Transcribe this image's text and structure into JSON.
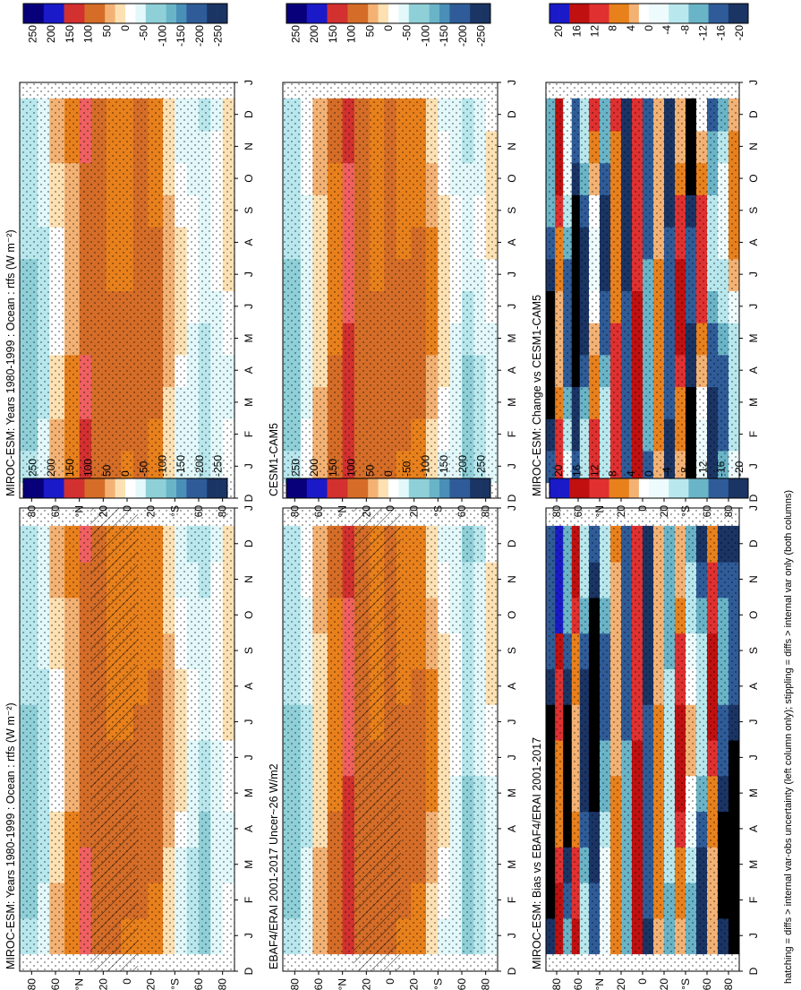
{
  "figure": {
    "footnote": "hatching = diffs > internal var-obs uncertainty (left column only); stippling = diffs > internal var only (both columns)"
  },
  "chart_data": [
    {
      "type": "heatmap",
      "panel": "left-top",
      "title": "MIROC-ESM: Years 1980-1999 : Ocean : rtfs (W m⁻²)",
      "x_ticks": [
        "D",
        "J",
        "F",
        "M",
        "A",
        "M",
        "J",
        "J",
        "A",
        "S",
        "O",
        "N",
        "D",
        "J"
      ],
      "y_ticks": [
        "80",
        "60",
        "°N",
        "20",
        "0",
        "20",
        "°S",
        "60",
        "80"
      ],
      "colorbar_ticks": [
        "250",
        "200",
        "150",
        "100",
        "50",
        "0",
        "-50",
        "-100",
        "-150",
        "-200",
        "-250"
      ],
      "stippling": true,
      "hatching": true,
      "bands": [
        {
          "lat": 80,
          "value": -60
        },
        {
          "lat": 70,
          "value": -40
        },
        {
          "lat": 60,
          "value": 10
        },
        {
          "lat": 45,
          "value": 40
        },
        {
          "lat": 35,
          "value": 80
        },
        {
          "lat": 25,
          "value": 70
        },
        {
          "lat": 10,
          "value": 60
        },
        {
          "lat": 0,
          "value": 60
        },
        {
          "lat": -10,
          "value": 60
        },
        {
          "lat": -25,
          "value": 60
        },
        {
          "lat": -35,
          "value": 20
        },
        {
          "lat": -45,
          "value": -10
        },
        {
          "lat": -55,
          "value": -30
        },
        {
          "lat": -65,
          "value": -50
        },
        {
          "lat": -75,
          "value": -20
        },
        {
          "lat": -85,
          "value": 0
        }
      ]
    },
    {
      "type": "heatmap",
      "panel": "right-top",
      "title": "MIROC-ESM: Years 1980-1999 : Ocean : rtfs (W m⁻²)",
      "x_ticks": [
        "D",
        "J",
        "F",
        "M",
        "A",
        "M",
        "J",
        "J",
        "A",
        "S",
        "O",
        "N",
        "D",
        "J"
      ],
      "y_ticks": [
        "80",
        "60",
        "°N",
        "20",
        "0",
        "20",
        "°S",
        "60",
        "80"
      ],
      "colorbar_ticks": [
        "250",
        "200",
        "150",
        "100",
        "50",
        "0",
        "-50",
        "-100",
        "-150",
        "-200",
        "-250"
      ],
      "stippling": true,
      "hatching": false,
      "bands": [
        {
          "lat": 80,
          "value": -60
        },
        {
          "lat": 70,
          "value": -40
        },
        {
          "lat": 60,
          "value": 10
        },
        {
          "lat": 45,
          "value": 40
        },
        {
          "lat": 35,
          "value": 90
        },
        {
          "lat": 25,
          "value": 70
        },
        {
          "lat": 10,
          "value": 60
        },
        {
          "lat": 0,
          "value": 60
        },
        {
          "lat": -10,
          "value": 70
        },
        {
          "lat": -25,
          "value": 60
        },
        {
          "lat": -35,
          "value": 20
        },
        {
          "lat": -45,
          "value": -10
        },
        {
          "lat": -55,
          "value": -20
        },
        {
          "lat": -65,
          "value": -40
        },
        {
          "lat": -75,
          "value": -20
        },
        {
          "lat": -85,
          "value": 0
        }
      ]
    },
    {
      "type": "heatmap",
      "panel": "left-middle",
      "title": "EBAF4/ERAI 2001-2017 Uncer~26 W/m2",
      "x_ticks": [
        "D",
        "J",
        "F",
        "M",
        "A",
        "M",
        "J",
        "J",
        "A",
        "S",
        "O",
        "N",
        "D",
        "J"
      ],
      "y_ticks": [
        "80",
        "60",
        "°N",
        "20",
        "0",
        "20",
        "°S",
        "60",
        "80"
      ],
      "colorbar_ticks": [
        "250",
        "200",
        "150",
        "100",
        "50",
        "0",
        "-50",
        "-100",
        "-150",
        "-200",
        "-250"
      ],
      "stippling": true,
      "hatching": true,
      "bands": [
        {
          "lat": 80,
          "value": -60
        },
        {
          "lat": 70,
          "value": -30
        },
        {
          "lat": 60,
          "value": 20
        },
        {
          "lat": 45,
          "value": 60
        },
        {
          "lat": 35,
          "value": 110
        },
        {
          "lat": 25,
          "value": 80
        },
        {
          "lat": 10,
          "value": 60
        },
        {
          "lat": 0,
          "value": 70
        },
        {
          "lat": -10,
          "value": 60
        },
        {
          "lat": -25,
          "value": 60
        },
        {
          "lat": -35,
          "value": 30
        },
        {
          "lat": -45,
          "value": 0
        },
        {
          "lat": -55,
          "value": -20
        },
        {
          "lat": -65,
          "value": -60
        },
        {
          "lat": -75,
          "value": -40
        },
        {
          "lat": -85,
          "value": -10
        }
      ]
    },
    {
      "type": "heatmap",
      "panel": "right-middle",
      "title": "CESM1-CAM5",
      "x_ticks": [
        "D",
        "J",
        "F",
        "M",
        "A",
        "M",
        "J",
        "J",
        "A",
        "S",
        "O",
        "N",
        "D",
        "J"
      ],
      "y_ticks": [
        "80",
        "60",
        "°N",
        "20",
        "0",
        "20",
        "°S",
        "60",
        "80"
      ],
      "colorbar_ticks": [
        "250",
        "200",
        "150",
        "100",
        "50",
        "0",
        "-50",
        "-100",
        "-150",
        "-200",
        "-250"
      ],
      "stippling": true,
      "hatching": false,
      "bands": [
        {
          "lat": 80,
          "value": -60
        },
        {
          "lat": 70,
          "value": -20
        },
        {
          "lat": 60,
          "value": 20
        },
        {
          "lat": 45,
          "value": 60
        },
        {
          "lat": 35,
          "value": 110
        },
        {
          "lat": 25,
          "value": 80
        },
        {
          "lat": 10,
          "value": 60
        },
        {
          "lat": 0,
          "value": 70
        },
        {
          "lat": -10,
          "value": 60
        },
        {
          "lat": -25,
          "value": 60
        },
        {
          "lat": -35,
          "value": 30
        },
        {
          "lat": -45,
          "value": 0
        },
        {
          "lat": -55,
          "value": -20
        },
        {
          "lat": -65,
          "value": -50
        },
        {
          "lat": -75,
          "value": -30
        },
        {
          "lat": -85,
          "value": -10
        }
      ]
    },
    {
      "type": "heatmap",
      "panel": "left-bottom",
      "title": "MIROC-ESM: Bias vs EBAF4/ERAI 2001-2017",
      "x_ticks": [
        "D",
        "J",
        "F",
        "M",
        "A",
        "M",
        "J",
        "J",
        "A",
        "S",
        "O",
        "N",
        "D",
        "J"
      ],
      "y_ticks": [
        "80",
        "60",
        "°N",
        "20",
        "0",
        "20",
        "°S",
        "60",
        "80"
      ],
      "colorbar_ticks": [
        "20",
        "16",
        "12",
        "8",
        "4",
        "0",
        "-4",
        "-8",
        "-12",
        "-16",
        "-20"
      ],
      "stippling": true,
      "hatching": false,
      "bands": [
        {
          "lat": 85,
          "value": -20
        },
        {
          "lat": 78,
          "value": 12
        },
        {
          "lat": 70,
          "value": -16
        },
        {
          "lat": 62,
          "value": 8
        },
        {
          "lat": 55,
          "value": -12
        },
        {
          "lat": 45,
          "value": -20
        },
        {
          "lat": 35,
          "value": -8
        },
        {
          "lat": 25,
          "value": 4
        },
        {
          "lat": 15,
          "value": -12
        },
        {
          "lat": 5,
          "value": 12
        },
        {
          "lat": -5,
          "value": -16
        },
        {
          "lat": -15,
          "value": 4
        },
        {
          "lat": -25,
          "value": -8
        },
        {
          "lat": -35,
          "value": 8
        },
        {
          "lat": -45,
          "value": -4
        },
        {
          "lat": -55,
          "value": -12
        },
        {
          "lat": -65,
          "value": 8
        },
        {
          "lat": -75,
          "value": -16
        },
        {
          "lat": -85,
          "value": -20
        }
      ]
    },
    {
      "type": "heatmap",
      "panel": "right-bottom",
      "title": "MIROC-ESM: Change vs CESM1-CAM5",
      "x_ticks": [
        "D",
        "J",
        "F",
        "M",
        "A",
        "M",
        "J",
        "J",
        "A",
        "S",
        "O",
        "N",
        "D",
        "J"
      ],
      "y_ticks": [
        "80",
        "60",
        "°N",
        "20",
        "0",
        "20",
        "°S",
        "60",
        "80"
      ],
      "colorbar_ticks": [
        "20",
        "16",
        "12",
        "8",
        "4",
        "0",
        "-4",
        "-8",
        "-12",
        "-16",
        "-20"
      ],
      "stippling": true,
      "hatching": false,
      "bands": [
        {
          "lat": 85,
          "value": -16
        },
        {
          "lat": 78,
          "value": 8
        },
        {
          "lat": 70,
          "value": -8
        },
        {
          "lat": 62,
          "value": -20
        },
        {
          "lat": 55,
          "value": -12
        },
        {
          "lat": 45,
          "value": 4
        },
        {
          "lat": 35,
          "value": -12
        },
        {
          "lat": 25,
          "value": 8
        },
        {
          "lat": 15,
          "value": -16
        },
        {
          "lat": 5,
          "value": 12
        },
        {
          "lat": -5,
          "value": -12
        },
        {
          "lat": -15,
          "value": 4
        },
        {
          "lat": -25,
          "value": -16
        },
        {
          "lat": -35,
          "value": 8
        },
        {
          "lat": -45,
          "value": -20
        },
        {
          "lat": -55,
          "value": 4
        },
        {
          "lat": -65,
          "value": -12
        },
        {
          "lat": -75,
          "value": -8
        },
        {
          "lat": -85,
          "value": 0
        }
      ]
    }
  ],
  "colors": {
    "scale": [
      "#08007a",
      "#1a1ac8",
      "#3452f0",
      "#6b8ef5",
      "#ffffff",
      "#d33",
      "#ff5555",
      "#f58a3a",
      "#e9891e",
      "#d77a2e",
      "#f3b274",
      "#fde1b3",
      "#ffffff",
      "#d6f5f7",
      "#b8e8ee",
      "#8fd0d8",
      "#6ab4c8",
      "#4a8fb8",
      "#2f5c98",
      "#1a3464",
      "#000000"
    ]
  }
}
